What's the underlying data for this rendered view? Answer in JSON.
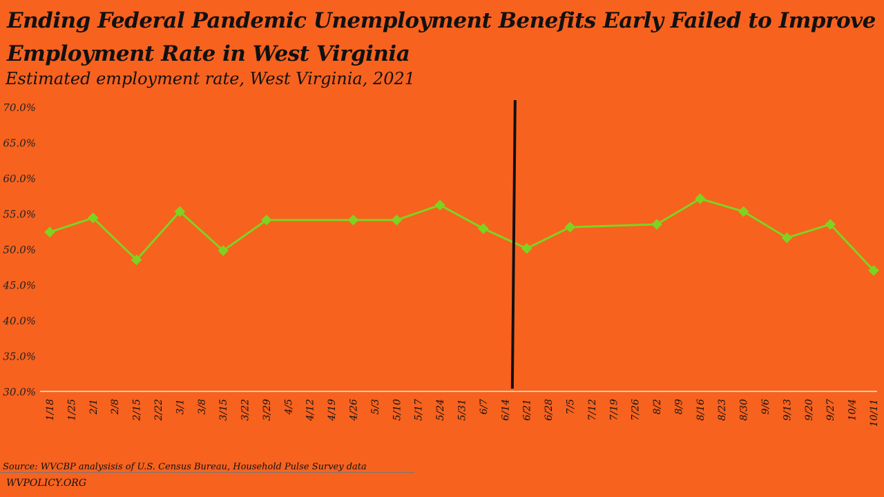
{
  "title": "Ending Federal Pandemic Unemployment Benefits Early Failed to Improve Employment Rate in West Virginia",
  "subtitle": "Estimated employment rate, West Virginia, 2021",
  "source": "Source: WVCBP analysisis of U.S. Census Bureau, Household Pulse Survey data",
  "footer": "WVPOLICY.ORG",
  "colors": {
    "background": "#f7621f",
    "line": "#7ed321",
    "marker": "#7ed321",
    "divider": "#111111"
  },
  "chart_data": {
    "type": "line",
    "title": "Estimated employment rate, West Virginia, 2021",
    "xlabel": "",
    "ylabel": "",
    "ylim": [
      30,
      70
    ],
    "yticks": [
      "30.0%",
      "35.0%",
      "40.0%",
      "45.0%",
      "50.0%",
      "55.0%",
      "60.0%",
      "65.0%",
      "70.0%"
    ],
    "categories": [
      "1/18",
      "1/25",
      "2/1",
      "2/8",
      "2/15",
      "2/22",
      "3/1",
      "3/8",
      "3/15",
      "3/22",
      "3/29",
      "4/5",
      "4/12",
      "4/19",
      "4/26",
      "5/3",
      "5/10",
      "5/17",
      "5/24",
      "5/31",
      "6/7",
      "6/14",
      "6/21",
      "6/28",
      "7/5",
      "7/12",
      "7/19",
      "7/26",
      "8/2",
      "8/9",
      "8/16",
      "8/23",
      "8/30",
      "9/6",
      "9/13",
      "9/20",
      "9/27",
      "10/4",
      "10/11"
    ],
    "series": [
      {
        "name": "Employment rate",
        "points": [
          {
            "x": "1/18",
            "y": 52.4
          },
          {
            "x": "2/1",
            "y": 54.4
          },
          {
            "x": "2/15",
            "y": 48.5
          },
          {
            "x": "3/1",
            "y": 55.3
          },
          {
            "x": "3/15",
            "y": 49.8
          },
          {
            "x": "3/29",
            "y": 54.1
          },
          {
            "x": "4/26",
            "y": 54.1
          },
          {
            "x": "5/10",
            "y": 54.1
          },
          {
            "x": "5/24",
            "y": 56.2
          },
          {
            "x": "6/7",
            "y": 52.9
          },
          {
            "x": "6/21",
            "y": 50.1
          },
          {
            "x": "7/5",
            "y": 53.1
          },
          {
            "x": "8/2",
            "y": 53.5
          },
          {
            "x": "8/16",
            "y": 57.1
          },
          {
            "x": "8/30",
            "y": 55.3
          },
          {
            "x": "9/13",
            "y": 51.6
          },
          {
            "x": "9/27",
            "y": 53.5
          },
          {
            "x": "10/11",
            "y": 47.0
          }
        ]
      }
    ],
    "annotation": {
      "type": "vertical-line",
      "between": [
        "6/14",
        "6/21"
      ],
      "position_index": 21.4
    },
    "grid": false,
    "legend": "none"
  }
}
